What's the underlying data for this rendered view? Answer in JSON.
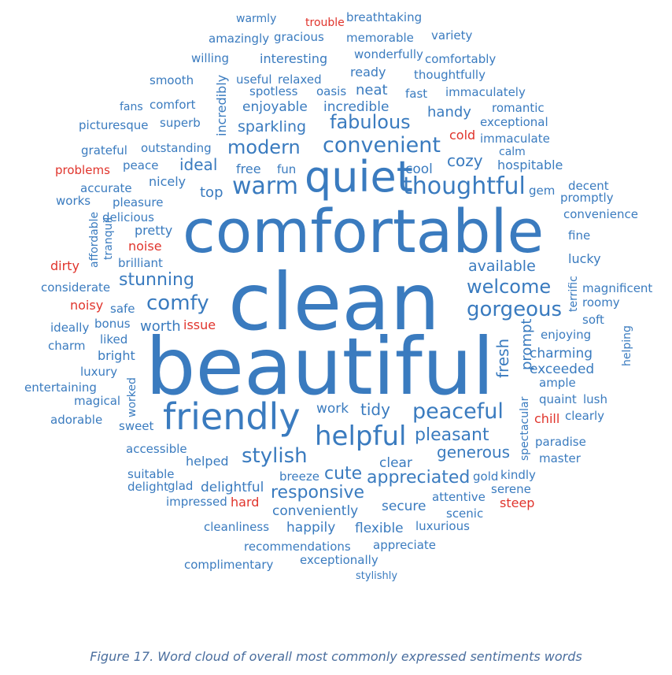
{
  "colors": {
    "positive": "#3a7bbf",
    "negative": "#e0342c"
  },
  "caption": "Figure 17. Word cloud of overall most commonly expressed sentiments words",
  "words": [
    {
      "t": "warmly",
      "s": "pos"
    },
    {
      "t": "trouble",
      "s": "neg"
    },
    {
      "t": "breathtaking",
      "s": "pos"
    },
    {
      "t": "amazingly",
      "s": "pos"
    },
    {
      "t": "gracious",
      "s": "pos"
    },
    {
      "t": "memorable",
      "s": "pos"
    },
    {
      "t": "variety",
      "s": "pos"
    },
    {
      "t": "willing",
      "s": "pos"
    },
    {
      "t": "interesting",
      "s": "pos"
    },
    {
      "t": "wonderfully",
      "s": "pos"
    },
    {
      "t": "comfortably",
      "s": "pos"
    },
    {
      "t": "ready",
      "s": "pos"
    },
    {
      "t": "thoughtfully",
      "s": "pos"
    },
    {
      "t": "smooth",
      "s": "pos"
    },
    {
      "t": "useful",
      "s": "pos"
    },
    {
      "t": "relaxed",
      "s": "pos"
    },
    {
      "t": "spotless",
      "s": "pos"
    },
    {
      "t": "oasis",
      "s": "pos"
    },
    {
      "t": "neat",
      "s": "pos"
    },
    {
      "t": "fast",
      "s": "pos"
    },
    {
      "t": "immaculately",
      "s": "pos"
    },
    {
      "t": "incredibly",
      "s": "pos"
    },
    {
      "t": "fans",
      "s": "pos"
    },
    {
      "t": "comfort",
      "s": "pos"
    },
    {
      "t": "enjoyable",
      "s": "pos"
    },
    {
      "t": "incredible",
      "s": "pos"
    },
    {
      "t": "handy",
      "s": "pos"
    },
    {
      "t": "romantic",
      "s": "pos"
    },
    {
      "t": "picturesque",
      "s": "pos"
    },
    {
      "t": "superb",
      "s": "pos"
    },
    {
      "t": "sparkling",
      "s": "pos"
    },
    {
      "t": "fabulous",
      "s": "pos"
    },
    {
      "t": "exceptional",
      "s": "pos"
    },
    {
      "t": "cold",
      "s": "neg"
    },
    {
      "t": "immaculate",
      "s": "pos"
    },
    {
      "t": "grateful",
      "s": "pos"
    },
    {
      "t": "outstanding",
      "s": "pos"
    },
    {
      "t": "modern",
      "s": "pos"
    },
    {
      "t": "convenient",
      "s": "pos"
    },
    {
      "t": "calm",
      "s": "pos"
    },
    {
      "t": "problems",
      "s": "neg"
    },
    {
      "t": "peace",
      "s": "pos"
    },
    {
      "t": "ideal",
      "s": "pos"
    },
    {
      "t": "free",
      "s": "pos"
    },
    {
      "t": "fun",
      "s": "pos"
    },
    {
      "t": "cool",
      "s": "pos"
    },
    {
      "t": "cozy",
      "s": "pos"
    },
    {
      "t": "hospitable",
      "s": "pos"
    },
    {
      "t": "accurate",
      "s": "pos"
    },
    {
      "t": "nicely",
      "s": "pos"
    },
    {
      "t": "warm",
      "s": "pos"
    },
    {
      "t": "quiet",
      "s": "pos"
    },
    {
      "t": "thoughtful",
      "s": "pos"
    },
    {
      "t": "gem",
      "s": "pos"
    },
    {
      "t": "decent",
      "s": "pos"
    },
    {
      "t": "works",
      "s": "pos"
    },
    {
      "t": "pleasure",
      "s": "pos"
    },
    {
      "t": "top",
      "s": "pos"
    },
    {
      "t": "promptly",
      "s": "pos"
    },
    {
      "t": "delicious",
      "s": "pos"
    },
    {
      "t": "convenience",
      "s": "pos"
    },
    {
      "t": "affordable",
      "s": "pos"
    },
    {
      "t": "tranquil",
      "s": "pos"
    },
    {
      "t": "pretty",
      "s": "pos"
    },
    {
      "t": "comfortable",
      "s": "pos"
    },
    {
      "t": "fine",
      "s": "pos"
    },
    {
      "t": "noise",
      "s": "neg"
    },
    {
      "t": "lucky",
      "s": "pos"
    },
    {
      "t": "dirty",
      "s": "neg"
    },
    {
      "t": "brilliant",
      "s": "pos"
    },
    {
      "t": "available",
      "s": "pos"
    },
    {
      "t": "considerate",
      "s": "pos"
    },
    {
      "t": "stunning",
      "s": "pos"
    },
    {
      "t": "welcome",
      "s": "pos"
    },
    {
      "t": "terrific",
      "s": "pos"
    },
    {
      "t": "magnificent",
      "s": "pos"
    },
    {
      "t": "clean",
      "s": "pos"
    },
    {
      "t": "comfy",
      "s": "pos"
    },
    {
      "t": "noisy",
      "s": "neg"
    },
    {
      "t": "safe",
      "s": "pos"
    },
    {
      "t": "gorgeous",
      "s": "pos"
    },
    {
      "t": "roomy",
      "s": "pos"
    },
    {
      "t": "ideally",
      "s": "pos"
    },
    {
      "t": "bonus",
      "s": "pos"
    },
    {
      "t": "worth",
      "s": "pos"
    },
    {
      "t": "issue",
      "s": "neg"
    },
    {
      "t": "soft",
      "s": "pos"
    },
    {
      "t": "charm",
      "s": "pos"
    },
    {
      "t": "liked",
      "s": "pos"
    },
    {
      "t": "prompt",
      "s": "pos"
    },
    {
      "t": "enjoying",
      "s": "pos"
    },
    {
      "t": "bright",
      "s": "pos"
    },
    {
      "t": "fresh",
      "s": "pos"
    },
    {
      "t": "helping",
      "s": "pos"
    },
    {
      "t": "charming",
      "s": "pos"
    },
    {
      "t": "luxury",
      "s": "pos"
    },
    {
      "t": "beautiful",
      "s": "pos"
    },
    {
      "t": "exceeded",
      "s": "pos"
    },
    {
      "t": "entertaining",
      "s": "pos"
    },
    {
      "t": "ample",
      "s": "pos"
    },
    {
      "t": "magical",
      "s": "pos"
    },
    {
      "t": "quaint",
      "s": "pos"
    },
    {
      "t": "lush",
      "s": "pos"
    },
    {
      "t": "worked",
      "s": "pos"
    },
    {
      "t": "friendly",
      "s": "pos"
    },
    {
      "t": "work",
      "s": "pos"
    },
    {
      "t": "tidy",
      "s": "pos"
    },
    {
      "t": "peaceful",
      "s": "pos"
    },
    {
      "t": "adorable",
      "s": "pos"
    },
    {
      "t": "chill",
      "s": "neg"
    },
    {
      "t": "clearly",
      "s": "pos"
    },
    {
      "t": "sweet",
      "s": "pos"
    },
    {
      "t": "helpful",
      "s": "pos"
    },
    {
      "t": "pleasant",
      "s": "pos"
    },
    {
      "t": "spectacular",
      "s": "pos"
    },
    {
      "t": "paradise",
      "s": "pos"
    },
    {
      "t": "accessible",
      "s": "pos"
    },
    {
      "t": "stylish",
      "s": "pos"
    },
    {
      "t": "generous",
      "s": "pos"
    },
    {
      "t": "master",
      "s": "pos"
    },
    {
      "t": "helped",
      "s": "pos"
    },
    {
      "t": "clear",
      "s": "pos"
    },
    {
      "t": "suitable",
      "s": "pos"
    },
    {
      "t": "cute",
      "s": "pos"
    },
    {
      "t": "appreciated",
      "s": "pos"
    },
    {
      "t": "gold",
      "s": "pos"
    },
    {
      "t": "kindly",
      "s": "pos"
    },
    {
      "t": "delight",
      "s": "pos"
    },
    {
      "t": "glad",
      "s": "pos"
    },
    {
      "t": "delightful",
      "s": "pos"
    },
    {
      "t": "breeze",
      "s": "pos"
    },
    {
      "t": "responsive",
      "s": "pos"
    },
    {
      "t": "serene",
      "s": "pos"
    },
    {
      "t": "impressed",
      "s": "pos"
    },
    {
      "t": "hard",
      "s": "neg"
    },
    {
      "t": "attentive",
      "s": "pos"
    },
    {
      "t": "steep",
      "s": "neg"
    },
    {
      "t": "secure",
      "s": "pos"
    },
    {
      "t": "conveniently",
      "s": "pos"
    },
    {
      "t": "scenic",
      "s": "pos"
    },
    {
      "t": "cleanliness",
      "s": "pos"
    },
    {
      "t": "happily",
      "s": "pos"
    },
    {
      "t": "flexible",
      "s": "pos"
    },
    {
      "t": "luxurious",
      "s": "pos"
    },
    {
      "t": "recommendations",
      "s": "pos"
    },
    {
      "t": "appreciate",
      "s": "pos"
    },
    {
      "t": "complimentary",
      "s": "pos"
    },
    {
      "t": "exceptionally",
      "s": "pos"
    },
    {
      "t": "stylishly",
      "s": "pos"
    }
  ]
}
